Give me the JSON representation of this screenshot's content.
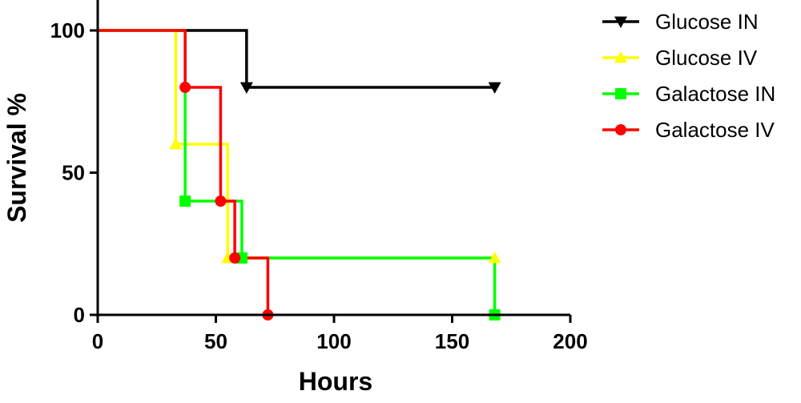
{
  "chart_data": {
    "type": "line",
    "step": true,
    "xlabel": "Hours",
    "ylabel": "Survival %",
    "xlim": [
      0,
      200
    ],
    "ylim": [
      0,
      100
    ],
    "xticks": [
      0,
      50,
      100,
      150,
      200
    ],
    "yticks": [
      0,
      50,
      100
    ],
    "x_tick_labels": [
      "0",
      "50",
      "100",
      "150",
      "200"
    ],
    "y_tick_labels": [
      "0",
      "50",
      "100"
    ],
    "grid": false,
    "legend_position": "top-right",
    "series": [
      {
        "name": "Glucose IN",
        "color": "#000000",
        "marker": "triangle-down",
        "x": [
          0,
          63,
          168
        ],
        "y": [
          100,
          80,
          80
        ],
        "marker_x": [
          63,
          168
        ],
        "marker_y": [
          80,
          80
        ]
      },
      {
        "name": "Glucose IV",
        "color": "#ffff00",
        "marker": "triangle-up",
        "x": [
          0,
          33,
          55,
          168
        ],
        "y": [
          100,
          60,
          20,
          20
        ],
        "marker_x": [
          33,
          55,
          168
        ],
        "marker_y": [
          60,
          20,
          20
        ]
      },
      {
        "name": "Galactose IN",
        "color": "#00ff00",
        "marker": "square",
        "x": [
          0,
          37,
          61,
          168
        ],
        "y": [
          100,
          40,
          20,
          0
        ],
        "marker_x": [
          37,
          61,
          168
        ],
        "marker_y": [
          40,
          20,
          0
        ]
      },
      {
        "name": "Galactose IV",
        "color": "#ff0000",
        "marker": "circle",
        "x": [
          0,
          37,
          52,
          58,
          72
        ],
        "y": [
          100,
          80,
          40,
          20,
          0
        ],
        "marker_x": [
          37,
          52,
          58,
          72
        ],
        "marker_y": [
          80,
          40,
          20,
          0
        ]
      }
    ]
  }
}
